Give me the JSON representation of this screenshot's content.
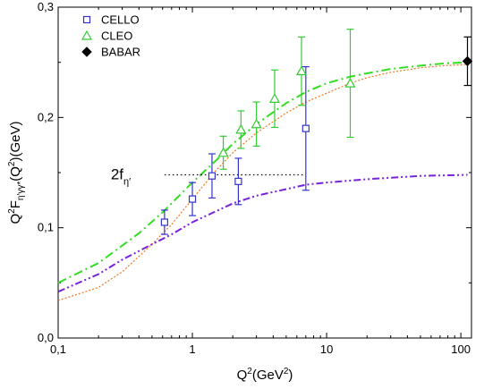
{
  "chart_data": {
    "type": "scatter",
    "title": "",
    "xlabel": {
      "base": "Q",
      "sup": "2",
      "rest": "(GeV",
      "sup2": "2",
      "end": ")"
    },
    "ylabel": {
      "p1": "Q",
      "s1": "2",
      "p2": "F",
      "sub1": "η′γγ*",
      "p3": "(Q",
      "s2": "2",
      "p4": ")(GeV)"
    },
    "xscale": "log",
    "xlim": [
      0.1,
      120
    ],
    "ylim": [
      0.0,
      0.3
    ],
    "xticks": [
      {
        "v": 0.1,
        "label": "0,1"
      },
      {
        "v": 1,
        "label": "1"
      },
      {
        "v": 10,
        "label": "10"
      },
      {
        "v": 100,
        "label": "100"
      }
    ],
    "yticks": [
      {
        "v": 0.0,
        "label": "0,0"
      },
      {
        "v": 0.1,
        "label": "0,1"
      },
      {
        "v": 0.2,
        "label": "0,2"
      },
      {
        "v": 0.3,
        "label": "0,3"
      }
    ],
    "grid": false,
    "legend_position": "top-left",
    "series": [
      {
        "name": "CELLO",
        "marker": "square-open",
        "color": "#3333cc",
        "points": [
          {
            "x": 0.62,
            "y": 0.105,
            "err": 0.011
          },
          {
            "x": 1.0,
            "y": 0.126,
            "err": 0.015
          },
          {
            "x": 1.4,
            "y": 0.147,
            "err": 0.02
          },
          {
            "x": 2.2,
            "y": 0.142,
            "err": 0.021
          },
          {
            "x": 7.0,
            "y": 0.19,
            "err": 0.056
          }
        ]
      },
      {
        "name": "CLEO",
        "marker": "triangle-open",
        "color": "#33cc33",
        "points": [
          {
            "x": 1.7,
            "y": 0.168,
            "err": 0.015
          },
          {
            "x": 2.3,
            "y": 0.189,
            "err": 0.017
          },
          {
            "x": 3.0,
            "y": 0.194,
            "err": 0.02
          },
          {
            "x": 4.1,
            "y": 0.217,
            "err": 0.026
          },
          {
            "x": 6.5,
            "y": 0.242,
            "err": 0.031
          },
          {
            "x": 15.0,
            "y": 0.231,
            "err": 0.049
          }
        ]
      },
      {
        "name": "BABAR",
        "marker": "diamond-filled",
        "color": "#000000",
        "points": [
          {
            "x": 112,
            "y": 0.251,
            "err": 0.022
          }
        ]
      }
    ],
    "curves": [
      {
        "style": "dash-dot",
        "color": "#33dd22",
        "points": [
          [
            0.1,
            0.05
          ],
          [
            0.2,
            0.068
          ],
          [
            0.4,
            0.095
          ],
          [
            0.6,
            0.114
          ],
          [
            1.0,
            0.141
          ],
          [
            1.5,
            0.161
          ],
          [
            2.0,
            0.176
          ],
          [
            3.0,
            0.194
          ],
          [
            5.0,
            0.213
          ],
          [
            7.0,
            0.223
          ],
          [
            10,
            0.231
          ],
          [
            15,
            0.237
          ],
          [
            20,
            0.24
          ],
          [
            30,
            0.244
          ],
          [
            50,
            0.247
          ],
          [
            75,
            0.249
          ],
          [
            112,
            0.25
          ]
        ]
      },
      {
        "style": "dotted",
        "color": "#ee7722",
        "points": [
          [
            0.1,
            0.034
          ],
          [
            0.2,
            0.046
          ],
          [
            0.3,
            0.06
          ],
          [
            0.5,
            0.085
          ],
          [
            0.7,
            0.103
          ],
          [
            1.0,
            0.126
          ],
          [
            1.5,
            0.152
          ],
          [
            2.0,
            0.168
          ],
          [
            3.0,
            0.186
          ],
          [
            5.0,
            0.204
          ],
          [
            7.0,
            0.214
          ],
          [
            10,
            0.222
          ],
          [
            15,
            0.231
          ],
          [
            20,
            0.236
          ],
          [
            30,
            0.241
          ],
          [
            50,
            0.245
          ],
          [
            75,
            0.247
          ],
          [
            112,
            0.248
          ]
        ]
      },
      {
        "style": "dash-dot-dot",
        "color": "#7722dd",
        "points": [
          [
            0.1,
            0.042
          ],
          [
            0.2,
            0.058
          ],
          [
            0.3,
            0.071
          ],
          [
            0.5,
            0.085
          ],
          [
            0.7,
            0.094
          ],
          [
            1.0,
            0.105
          ],
          [
            1.5,
            0.115
          ],
          [
            2.0,
            0.122
          ],
          [
            3.0,
            0.129
          ],
          [
            5.0,
            0.135
          ],
          [
            7.0,
            0.139
          ],
          [
            10,
            0.141
          ],
          [
            20,
            0.144
          ],
          [
            50,
            0.147
          ],
          [
            112,
            0.148
          ]
        ]
      },
      {
        "style": "dotted-reference",
        "color": "#000000",
        "points": [
          [
            0.62,
            0.148
          ],
          [
            7.0,
            0.148
          ]
        ]
      }
    ],
    "annotation": {
      "main": "2f",
      "sub": "η′",
      "x": 0.47,
      "y": 0.148
    }
  }
}
